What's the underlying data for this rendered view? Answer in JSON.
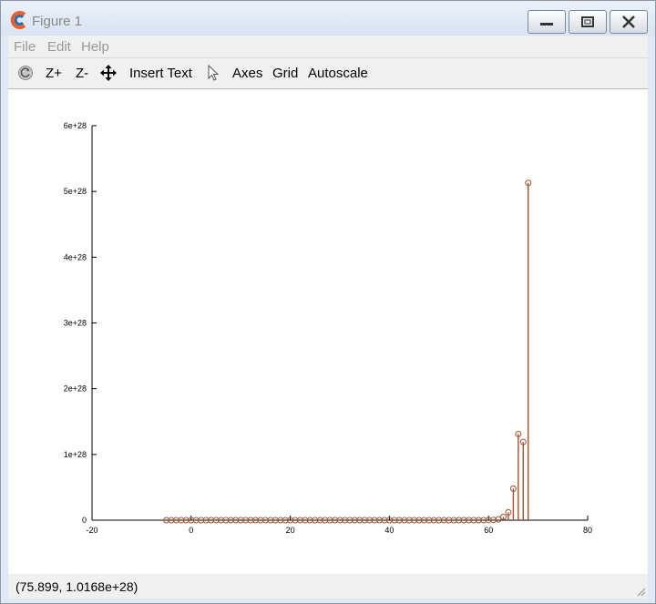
{
  "window": {
    "title": "Figure 1"
  },
  "menu": {
    "items": [
      "File",
      "Edit",
      "Help"
    ]
  },
  "toolbar": {
    "rotate_icon": "rotate-icon",
    "zoom_in": "Z+",
    "zoom_out": "Z-",
    "pan_icon": "pan-arrows-icon",
    "insert_text": "Insert Text",
    "select_icon": "pointer-icon",
    "axes": "Axes",
    "grid": "Grid",
    "autoscale": "Autoscale"
  },
  "status": {
    "coords": "(75.899, 1.0168e+28)"
  },
  "colors": {
    "stem": "#a0522d",
    "accent": "#1e90ff"
  },
  "chart_data": {
    "type": "stem",
    "title": "",
    "xlabel": "",
    "ylabel": "",
    "xlim": [
      -20,
      80
    ],
    "ylim": [
      0,
      6e+28
    ],
    "x_ticks": [
      -20,
      0,
      20,
      40,
      60,
      80
    ],
    "x_tick_labels": [
      "-20",
      "0",
      "20",
      "40",
      "60",
      "80"
    ],
    "y_ticks": [
      0,
      1e+28,
      2e+28,
      3e+28,
      4e+28,
      5e+28,
      6e+28
    ],
    "y_tick_labels": [
      "0",
      "1e+28",
      "2e+28",
      "3e+28",
      "4e+28",
      "5e+28",
      "6e+28"
    ],
    "grid": false,
    "x": [
      -5,
      -4,
      -3,
      -2,
      -1,
      0,
      1,
      2,
      3,
      4,
      5,
      6,
      7,
      8,
      9,
      10,
      11,
      12,
      13,
      14,
      15,
      16,
      17,
      18,
      19,
      20,
      21,
      22,
      23,
      24,
      25,
      26,
      27,
      28,
      29,
      30,
      31,
      32,
      33,
      34,
      35,
      36,
      37,
      38,
      39,
      40,
      41,
      42,
      43,
      44,
      45,
      46,
      47,
      48,
      49,
      50,
      51,
      52,
      53,
      54,
      55,
      56,
      57,
      58,
      59,
      60,
      61,
      62,
      63,
      64,
      65,
      66,
      67,
      68
    ],
    "y": [
      0,
      0,
      0,
      0,
      0,
      0,
      0,
      0,
      0,
      0,
      0,
      0,
      0,
      0,
      0,
      0,
      0,
      0,
      0,
      0,
      0,
      0,
      0,
      0,
      0,
      0,
      0,
      0,
      0,
      0,
      0,
      0,
      0,
      0,
      0,
      0,
      0,
      0,
      0,
      0,
      0,
      0,
      0,
      0,
      0,
      0,
      0,
      0,
      0,
      0,
      0,
      0,
      0,
      0,
      0,
      0,
      0,
      0,
      0,
      0,
      0,
      0,
      0,
      0,
      0,
      1e+25,
      4e+25,
      1.2e+26,
      5e+26,
      1.2e+27,
      4.8e+27,
      1.31e+28,
      1.19e+28,
      5.13e+28
    ]
  }
}
